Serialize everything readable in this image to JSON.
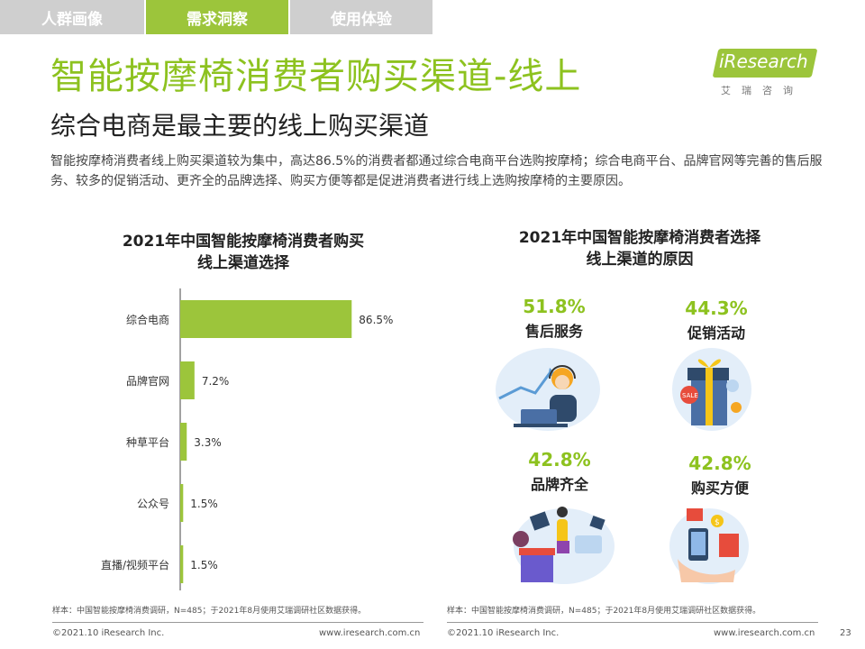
{
  "tabs": [
    {
      "label": "人群画像",
      "active": false
    },
    {
      "label": "需求洞察",
      "active": true
    },
    {
      "label": "使用体验",
      "active": false
    }
  ],
  "title": "智能按摩椅消费者购买渠道-线上",
  "subtitle": "综合电商是最主要的线上购买渠道",
  "description": "智能按摩椅消费者线上购买渠道较为集中，高达86.5%的消费者都通过综合电商平台选购按摩椅；综合电商平台、品牌官网等完善的售后服务、较多的促销活动、更齐全的品牌选择、购买方便等都是促进消费者进行线上选购按摩椅的主要原因。",
  "logo": {
    "text": "iResearch",
    "sub": "艾瑞咨询"
  },
  "chart_data": [
    {
      "type": "bar",
      "orientation": "horizontal",
      "title_lines": [
        "2021年中国智能按摩椅消费者购买",
        "线上渠道选择"
      ],
      "categories": [
        "综合电商",
        "品牌官网",
        "种草平台",
        "公众号",
        "直播/视频平台"
      ],
      "values": [
        86.5,
        7.2,
        3.3,
        1.5,
        1.5
      ],
      "value_labels": [
        "86.5%",
        "7.2%",
        "3.3%",
        "1.5%",
        "1.5%"
      ],
      "xlim": [
        0,
        100
      ],
      "color": "#9cc53b"
    },
    {
      "type": "table",
      "title_lines": [
        "2021年中国智能按摩椅消费者选择",
        "线上渠道的原因"
      ],
      "items": [
        {
          "label": "售后服务",
          "value": 51.8,
          "pct": "51.8%",
          "icon": "customer-service-icon"
        },
        {
          "label": "促销活动",
          "value": 44.3,
          "pct": "44.3%",
          "icon": "gift-sale-icon"
        },
        {
          "label": "品牌齐全",
          "value": 42.8,
          "pct": "42.8%",
          "icon": "shopping-variety-icon"
        },
        {
          "label": "购买方便",
          "value": 42.8,
          "pct": "42.8%",
          "icon": "mobile-shopping-icon"
        }
      ]
    }
  ],
  "notes": {
    "left": "样本：中国智能按摩椅消费调研，N=485；于2021年8月使用艾瑞调研社区数据获得。",
    "right": "样本：中国智能按摩椅消费调研，N=485；于2021年8月使用艾瑞调研社区数据获得。"
  },
  "footer": {
    "copyright": "©2021.10 iResearch Inc.",
    "website": "www.iresearch.com.cn",
    "page": "23"
  },
  "colors": {
    "accent": "#8dc21f",
    "bar": "#9cc53b",
    "inactive_tab": "#cfcfcf"
  }
}
